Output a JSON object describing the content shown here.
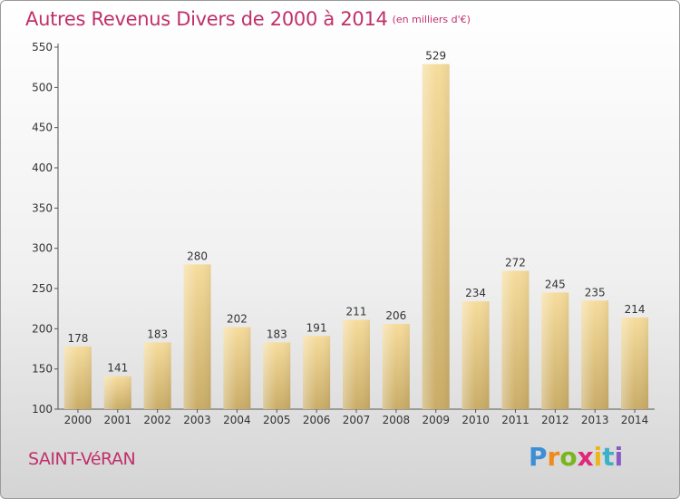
{
  "title": "Autres Revenus Divers de 2000 à 2014",
  "subtitle": "(en milliers d'€)",
  "commune": "SAINT-VéRAN",
  "logo": {
    "letters": [
      "P",
      "r",
      "o",
      "x",
      "i",
      "t",
      "i"
    ],
    "colors": [
      "#3b8fd6",
      "#f08a1a",
      "#7ab51d",
      "#e0287a",
      "#f0b41a",
      "#3bb0c8",
      "#8a5bc6"
    ]
  },
  "colors": {
    "title": "#c0306a",
    "bar_light": "#f6dc9c",
    "bar_dark": "#c9ac67",
    "axis_text": "#333333"
  },
  "chart_data": {
    "type": "bar",
    "categories": [
      "2000",
      "2001",
      "2002",
      "2003",
      "2004",
      "2005",
      "2006",
      "2007",
      "2008",
      "2009",
      "2010",
      "2011",
      "2012",
      "2013",
      "2014"
    ],
    "values": [
      178,
      141,
      183,
      280,
      202,
      183,
      191,
      211,
      206,
      529,
      234,
      272,
      245,
      235,
      214
    ],
    "ylim": [
      100,
      550
    ],
    "yticks": [
      100,
      150,
      200,
      250,
      300,
      350,
      400,
      450,
      500,
      550
    ],
    "grid": false,
    "xlabel": "",
    "ylabel": ""
  }
}
